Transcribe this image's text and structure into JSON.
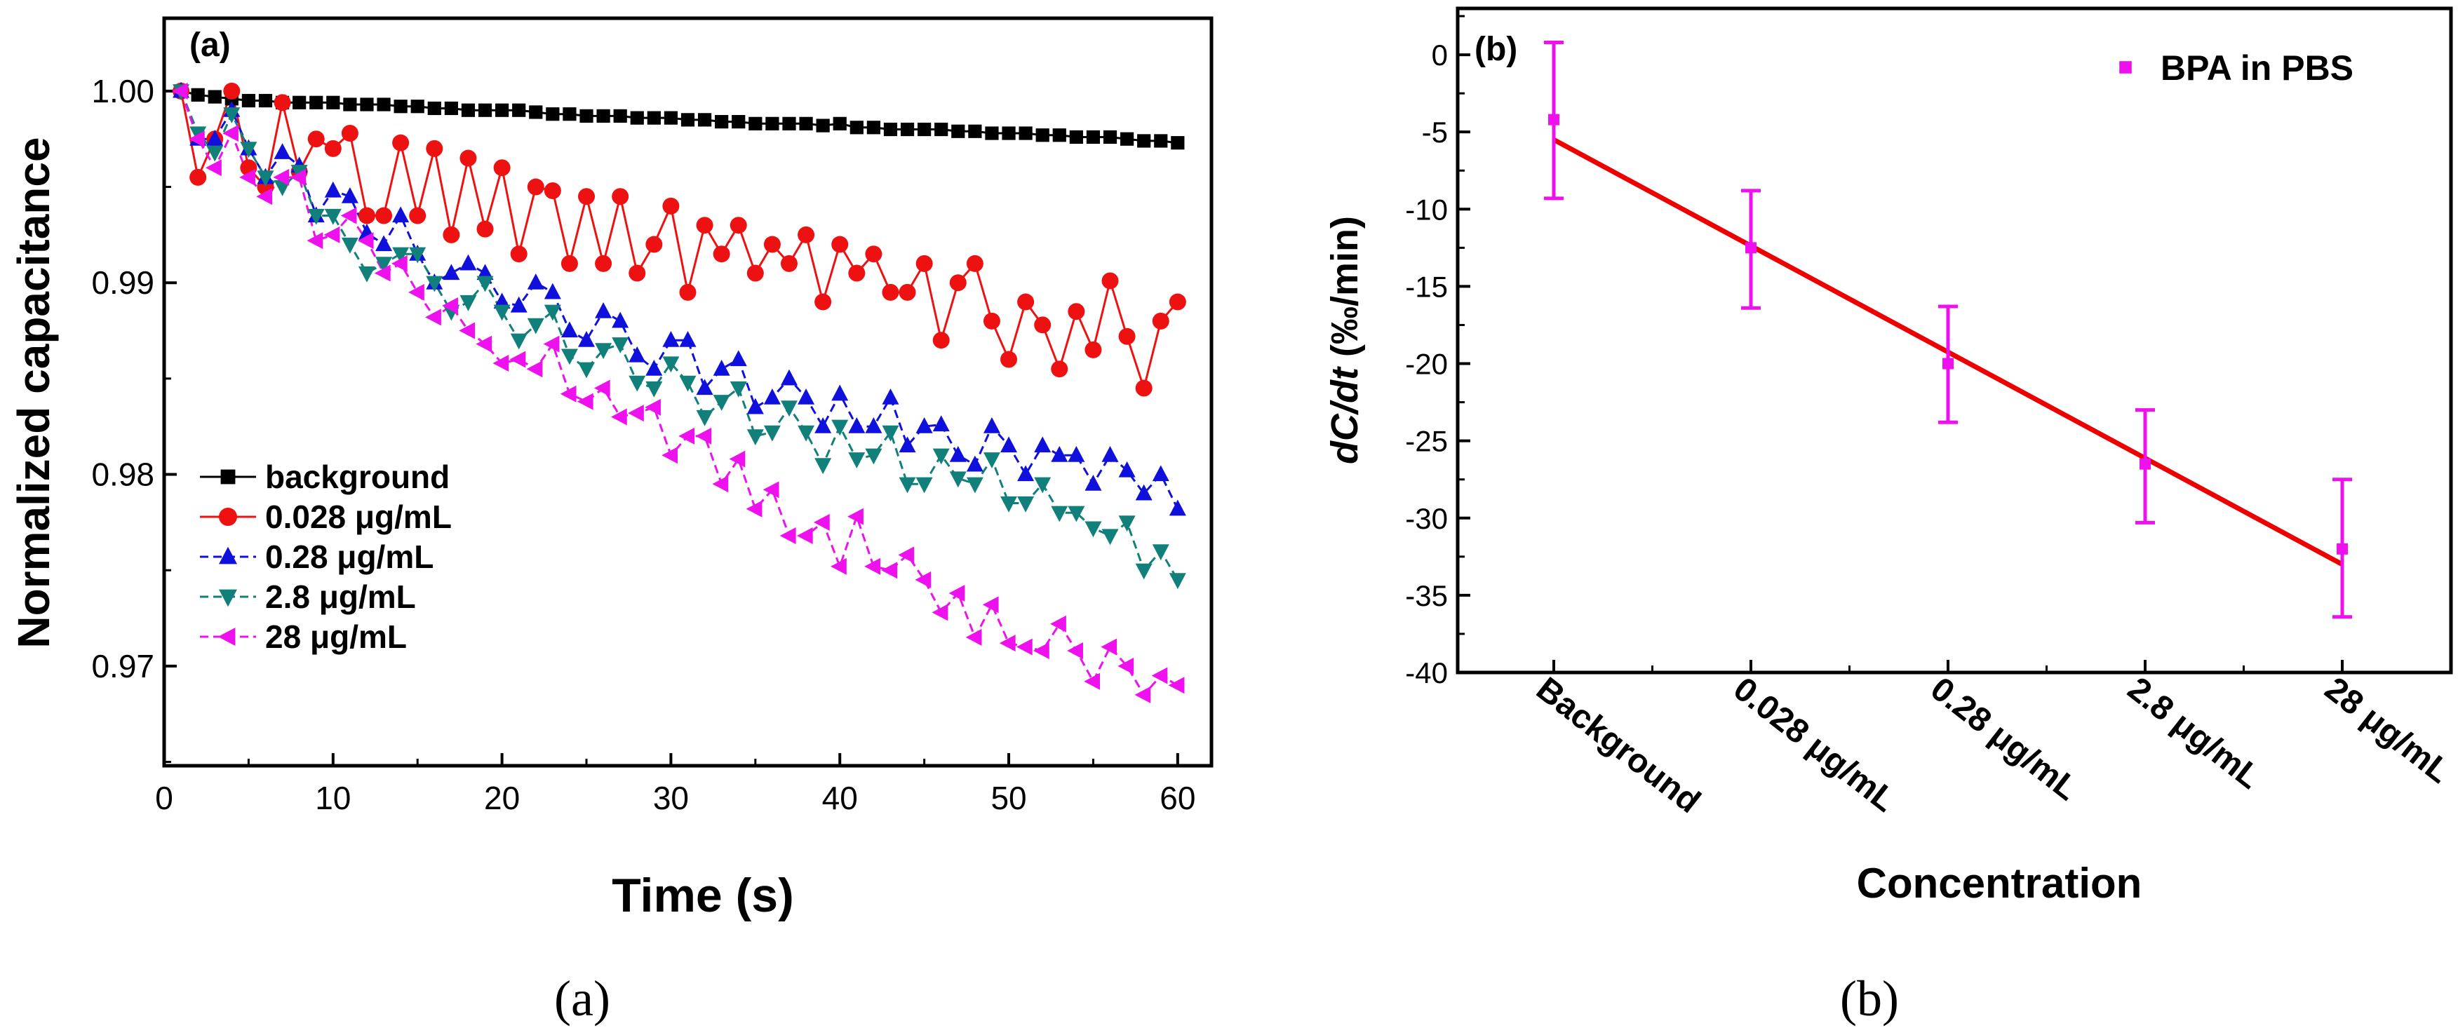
{
  "chart_data": [
    {
      "type": "line",
      "panel_label": "(a)",
      "caption": "(a)",
      "xlabel": "Time (s)",
      "ylabel": "Normalized capacitance",
      "xlim": [
        0,
        62
      ],
      "ylim": [
        0.9648,
        1.0038
      ],
      "xticks": [
        0,
        10,
        20,
        30,
        40,
        50,
        60
      ],
      "yticks": [
        0.97,
        0.98,
        0.99,
        1.0
      ],
      "ytick_labels": [
        "0.97",
        "0.98",
        "0.99",
        "1.00"
      ],
      "legend_position": "lower-left",
      "grid": false,
      "x": [
        1,
        2,
        3,
        4,
        5,
        6,
        7,
        8,
        9,
        10,
        11,
        12,
        13,
        14,
        15,
        16,
        17,
        18,
        19,
        20,
        21,
        22,
        23,
        24,
        25,
        26,
        27,
        28,
        29,
        30,
        31,
        32,
        33,
        34,
        35,
        36,
        37,
        38,
        39,
        40,
        41,
        42,
        43,
        44,
        45,
        46,
        47,
        48,
        49,
        50,
        51,
        52,
        53,
        54,
        55,
        56,
        57,
        58,
        59,
        60
      ],
      "series": [
        {
          "name": "background",
          "marker": "square",
          "color": "#000000",
          "values": [
            1.0,
            0.9998,
            0.9997,
            0.9996,
            0.9995,
            0.9995,
            0.9994,
            0.9994,
            0.9994,
            0.9994,
            0.9993,
            0.9993,
            0.9993,
            0.9992,
            0.9992,
            0.9991,
            0.9991,
            0.999,
            0.999,
            0.999,
            0.999,
            0.9989,
            0.9988,
            0.9988,
            0.9987,
            0.9987,
            0.9987,
            0.9986,
            0.9986,
            0.9986,
            0.9985,
            0.9985,
            0.9984,
            0.9984,
            0.9983,
            0.9983,
            0.9983,
            0.9983,
            0.9982,
            0.9983,
            0.9981,
            0.9981,
            0.998,
            0.998,
            0.998,
            0.998,
            0.9979,
            0.9979,
            0.9978,
            0.9978,
            0.9978,
            0.9977,
            0.9977,
            0.9976,
            0.9976,
            0.9976,
            0.9975,
            0.9974,
            0.9974,
            0.9973
          ]
        },
        {
          "name": "0.028 μg/mL",
          "marker": "circle",
          "color": "#ee1111",
          "values": [
            1.0,
            0.9955,
            0.9975,
            1.0,
            0.996,
            0.995,
            0.9994,
            0.9958,
            0.9975,
            0.997,
            0.9978,
            0.9935,
            0.9935,
            0.9973,
            0.9935,
            0.997,
            0.9925,
            0.9965,
            0.9928,
            0.996,
            0.9915,
            0.995,
            0.9948,
            0.991,
            0.9945,
            0.991,
            0.9945,
            0.9905,
            0.992,
            0.994,
            0.9895,
            0.993,
            0.9915,
            0.993,
            0.9905,
            0.992,
            0.991,
            0.9925,
            0.989,
            0.992,
            0.9905,
            0.9915,
            0.9895,
            0.9895,
            0.991,
            0.987,
            0.99,
            0.991,
            0.988,
            0.986,
            0.989,
            0.9878,
            0.9855,
            0.9885,
            0.9865,
            0.9901,
            0.9872,
            0.9845,
            0.988,
            0.989
          ]
        },
        {
          "name": "0.28 μg/mL",
          "marker": "triangle-up",
          "color": "#1010dd",
          "values": [
            1.0,
            0.9975,
            0.9975,
            0.999,
            0.997,
            0.9955,
            0.9968,
            0.9961,
            0.9935,
            0.9948,
            0.9945,
            0.9926,
            0.992,
            0.9935,
            0.9915,
            0.99,
            0.9905,
            0.991,
            0.9905,
            0.989,
            0.9888,
            0.99,
            0.9895,
            0.9875,
            0.987,
            0.9885,
            0.988,
            0.9862,
            0.9855,
            0.987,
            0.987,
            0.9845,
            0.9855,
            0.986,
            0.9835,
            0.984,
            0.985,
            0.984,
            0.9825,
            0.9842,
            0.9825,
            0.9825,
            0.984,
            0.9815,
            0.9825,
            0.9826,
            0.981,
            0.9805,
            0.9825,
            0.9815,
            0.98,
            0.9815,
            0.981,
            0.981,
            0.9795,
            0.981,
            0.9802,
            0.979,
            0.98,
            0.9782
          ]
        },
        {
          "name": "2.8 μg/mL",
          "marker": "triangle-down",
          "color": "#11807a",
          "values": [
            1.0,
            0.9978,
            0.9968,
            0.9988,
            0.997,
            0.9955,
            0.995,
            0.9958,
            0.9935,
            0.9935,
            0.992,
            0.9905,
            0.991,
            0.9915,
            0.9915,
            0.99,
            0.9885,
            0.989,
            0.99,
            0.9885,
            0.987,
            0.9878,
            0.9885,
            0.9862,
            0.9855,
            0.9865,
            0.9868,
            0.9848,
            0.9845,
            0.9858,
            0.9848,
            0.983,
            0.9838,
            0.9845,
            0.982,
            0.9822,
            0.9835,
            0.9822,
            0.9805,
            0.9825,
            0.9808,
            0.981,
            0.9822,
            0.9795,
            0.9795,
            0.981,
            0.9798,
            0.9795,
            0.9808,
            0.9785,
            0.9785,
            0.9795,
            0.978,
            0.978,
            0.9772,
            0.9768,
            0.9775,
            0.975,
            0.976,
            0.9745
          ]
        },
        {
          "name": "28 μg/mL",
          "marker": "triangle-left",
          "color": "#ee11ee",
          "values": [
            1.0,
            0.9975,
            0.996,
            0.9978,
            0.9955,
            0.9945,
            0.9955,
            0.9955,
            0.9922,
            0.9925,
            0.9935,
            0.9922,
            0.9905,
            0.991,
            0.9895,
            0.9882,
            0.9888,
            0.9875,
            0.9868,
            0.9858,
            0.986,
            0.9855,
            0.9868,
            0.9842,
            0.9838,
            0.9845,
            0.983,
            0.9832,
            0.9835,
            0.981,
            0.982,
            0.982,
            0.9795,
            0.9808,
            0.9782,
            0.9792,
            0.9768,
            0.9768,
            0.9775,
            0.9752,
            0.9778,
            0.9752,
            0.975,
            0.9758,
            0.9745,
            0.9728,
            0.9738,
            0.9715,
            0.9732,
            0.9712,
            0.971,
            0.9708,
            0.9722,
            0.9708,
            0.9692,
            0.971,
            0.97,
            0.9685,
            0.9695,
            0.969
          ]
        }
      ]
    },
    {
      "type": "scatter",
      "panel_label": "(b)",
      "caption": "(b)",
      "xlabel": "Concentration",
      "ylabel": "dC/dt (‰/min)",
      "ylabel_italic": "dC/dt",
      "ylabel_rest": " (‰/min)",
      "categories": [
        "Background",
        "0.028 μg/mL",
        "0.28 μg/mL",
        "2.8 μg/mL",
        "28 μg/mL"
      ],
      "ylim": [
        -40,
        3
      ],
      "yticks": [
        0,
        -5,
        -10,
        -15,
        -20,
        -25,
        -30,
        -35,
        -40
      ],
      "legend_position": "top-right",
      "grid": false,
      "series": [
        {
          "name": "BPA in PBS",
          "marker": "square",
          "color": "#ee11ee",
          "values": [
            -4.2,
            -12.5,
            -20.0,
            -26.5,
            -32.0
          ],
          "error_low": [
            -9.3,
            -16.4,
            -23.8,
            -30.3,
            -36.4
          ],
          "error_high": [
            0.8,
            -8.8,
            -16.3,
            -23.0,
            -27.5
          ]
        }
      ],
      "fit_line": {
        "color": "#ee0000",
        "start": -5.5,
        "end": -33.0
      }
    }
  ]
}
